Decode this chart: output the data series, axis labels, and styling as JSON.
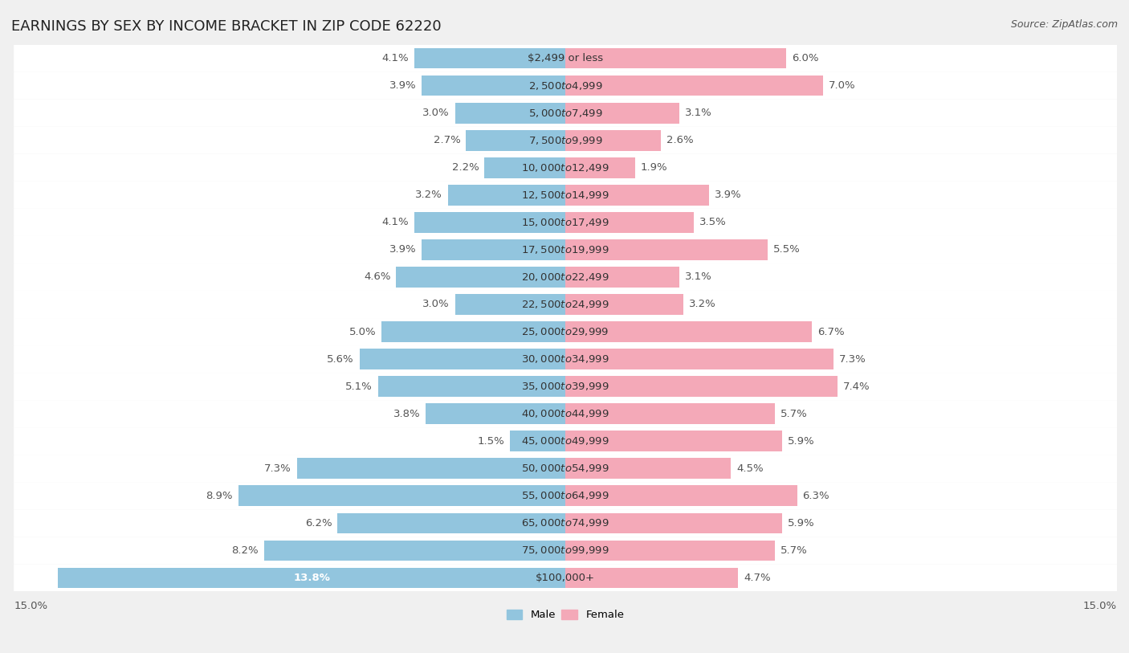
{
  "title": "EARNINGS BY SEX BY INCOME BRACKET IN ZIP CODE 62220",
  "source": "Source: ZipAtlas.com",
  "categories": [
    "$2,499 or less",
    "$2,500 to $4,999",
    "$5,000 to $7,499",
    "$7,500 to $9,999",
    "$10,000 to $12,499",
    "$12,500 to $14,999",
    "$15,000 to $17,499",
    "$17,500 to $19,999",
    "$20,000 to $22,499",
    "$22,500 to $24,999",
    "$25,000 to $29,999",
    "$30,000 to $34,999",
    "$35,000 to $39,999",
    "$40,000 to $44,999",
    "$45,000 to $49,999",
    "$50,000 to $54,999",
    "$55,000 to $64,999",
    "$65,000 to $74,999",
    "$75,000 to $99,999",
    "$100,000+"
  ],
  "male_values": [
    4.1,
    3.9,
    3.0,
    2.7,
    2.2,
    3.2,
    4.1,
    3.9,
    4.6,
    3.0,
    5.0,
    5.6,
    5.1,
    3.8,
    1.5,
    7.3,
    8.9,
    6.2,
    8.2,
    13.8
  ],
  "female_values": [
    6.0,
    7.0,
    3.1,
    2.6,
    1.9,
    3.9,
    3.5,
    5.5,
    3.1,
    3.2,
    6.7,
    7.3,
    7.4,
    5.7,
    5.9,
    4.5,
    6.3,
    5.9,
    5.7,
    4.7
  ],
  "male_color": "#92c5de",
  "female_color": "#f4a9b8",
  "male_label_color": "#555555",
  "female_label_color": "#555555",
  "last_bar_male_label_color": "#ffffff",
  "background_color": "#f0f0f0",
  "bar_background_color": "#ffffff",
  "xlim": 15.0,
  "bar_height": 0.75,
  "title_fontsize": 13,
  "label_fontsize": 9.5,
  "tick_fontsize": 9.5,
  "source_fontsize": 9
}
